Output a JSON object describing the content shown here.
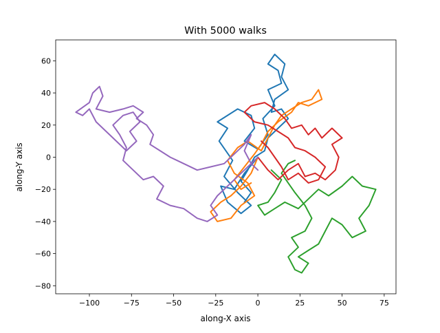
{
  "chart_data": {
    "type": "line",
    "title": "With 5000 walks",
    "xlabel": "along-X axis",
    "ylabel": "along-Y axis",
    "xlim": [
      -120,
      82
    ],
    "ylim": [
      -85,
      73
    ],
    "xticks": [
      -100,
      -75,
      -50,
      -25,
      0,
      25,
      50,
      75
    ],
    "xtick_labels": [
      "−100",
      "−75",
      "−50",
      "−25",
      "0",
      "25",
      "50",
      "75"
    ],
    "yticks": [
      -80,
      -60,
      -40,
      -20,
      0,
      20,
      40,
      60
    ],
    "ytick_labels": [
      "−80",
      "−60",
      "−40",
      "−20",
      "0",
      "20",
      "40",
      "60"
    ],
    "grid": false,
    "legend": "none",
    "series": [
      {
        "color": "#1f77b4",
        "values": [
          [
            0,
            0
          ],
          [
            -8,
            -10
          ],
          [
            -14,
            -20
          ],
          [
            -22,
            -18
          ],
          [
            -18,
            -28
          ],
          [
            -10,
            -35
          ],
          [
            -4,
            -30
          ],
          [
            -12,
            -22
          ],
          [
            -20,
            -12
          ],
          [
            -15,
            -2
          ],
          [
            -23,
            10
          ],
          [
            -18,
            18
          ],
          [
            -24,
            22
          ],
          [
            -12,
            30
          ],
          [
            -4,
            26
          ],
          [
            -2,
            18
          ],
          [
            -8,
            10
          ],
          [
            0,
            5
          ],
          [
            6,
            14
          ],
          [
            3,
            24
          ],
          [
            10,
            32
          ],
          [
            6,
            42
          ],
          [
            14,
            46
          ],
          [
            12,
            54
          ],
          [
            6,
            58
          ],
          [
            10,
            64
          ],
          [
            16,
            58
          ],
          [
            14,
            50
          ],
          [
            18,
            42
          ],
          [
            10,
            36
          ],
          [
            8,
            28
          ],
          [
            14,
            30
          ],
          [
            18,
            24
          ],
          [
            12,
            18
          ],
          [
            6,
            12
          ],
          [
            4,
            4
          ],
          [
            -2,
            0
          ],
          [
            -6,
            -8
          ],
          [
            -10,
            -15
          ],
          [
            -4,
            -22
          ],
          [
            -8,
            -28
          ]
        ]
      },
      {
        "color": "#ff7f0e",
        "values": [
          [
            0,
            0
          ],
          [
            -4,
            -10
          ],
          [
            -10,
            -18
          ],
          [
            -16,
            -24
          ],
          [
            -22,
            -28
          ],
          [
            -28,
            -34
          ],
          [
            -24,
            -40
          ],
          [
            -16,
            -38
          ],
          [
            -10,
            -30
          ],
          [
            -2,
            -24
          ],
          [
            -6,
            -16
          ],
          [
            -14,
            -10
          ],
          [
            -18,
            -2
          ],
          [
            -12,
            6
          ],
          [
            -6,
            10
          ],
          [
            2,
            4
          ],
          [
            6,
            12
          ],
          [
            10,
            20
          ],
          [
            14,
            26
          ],
          [
            20,
            30
          ],
          [
            26,
            34
          ],
          [
            32,
            36
          ],
          [
            36,
            42
          ],
          [
            38,
            36
          ],
          [
            30,
            32
          ],
          [
            24,
            34
          ],
          [
            20,
            28
          ],
          [
            12,
            22
          ],
          [
            6,
            16
          ],
          [
            2,
            8
          ],
          [
            -2,
            2
          ],
          [
            -8,
            -6
          ],
          [
            -14,
            -14
          ],
          [
            -10,
            -20
          ],
          [
            -4,
            -16
          ]
        ]
      },
      {
        "color": "#2ca02c",
        "values": [
          [
            8,
            -8
          ],
          [
            14,
            -14
          ],
          [
            10,
            -22
          ],
          [
            6,
            -28
          ],
          [
            0,
            -30
          ],
          [
            4,
            -36
          ],
          [
            10,
            -32
          ],
          [
            16,
            -28
          ],
          [
            24,
            -32
          ],
          [
            30,
            -26
          ],
          [
            36,
            -20
          ],
          [
            42,
            -24
          ],
          [
            50,
            -18
          ],
          [
            56,
            -12
          ],
          [
            62,
            -18
          ],
          [
            70,
            -20
          ],
          [
            66,
            -30
          ],
          [
            60,
            -38
          ],
          [
            64,
            -46
          ],
          [
            56,
            -50
          ],
          [
            50,
            -42
          ],
          [
            44,
            -38
          ],
          [
            40,
            -46
          ],
          [
            36,
            -54
          ],
          [
            30,
            -58
          ],
          [
            24,
            -62
          ],
          [
            30,
            -66
          ],
          [
            26,
            -72
          ],
          [
            22,
            -70
          ],
          [
            18,
            -62
          ],
          [
            24,
            -56
          ],
          [
            20,
            -50
          ],
          [
            28,
            -46
          ],
          [
            32,
            -38
          ],
          [
            28,
            -30
          ],
          [
            22,
            -22
          ],
          [
            18,
            -16
          ],
          [
            14,
            -10
          ],
          [
            18,
            -4
          ],
          [
            22,
            -2
          ]
        ]
      },
      {
        "color": "#d62728",
        "values": [
          [
            0,
            0
          ],
          [
            6,
            -8
          ],
          [
            12,
            -14
          ],
          [
            18,
            -8
          ],
          [
            24,
            -4
          ],
          [
            28,
            -12
          ],
          [
            34,
            -10
          ],
          [
            40,
            -14
          ],
          [
            46,
            -8
          ],
          [
            48,
            0
          ],
          [
            44,
            8
          ],
          [
            50,
            12
          ],
          [
            44,
            18
          ],
          [
            38,
            12
          ],
          [
            34,
            18
          ],
          [
            30,
            14
          ],
          [
            26,
            20
          ],
          [
            20,
            18
          ],
          [
            16,
            24
          ],
          [
            10,
            30
          ],
          [
            4,
            34
          ],
          [
            -4,
            32
          ],
          [
            -8,
            28
          ],
          [
            -2,
            22
          ],
          [
            6,
            20
          ],
          [
            12,
            16
          ],
          [
            18,
            12
          ],
          [
            22,
            6
          ],
          [
            28,
            4
          ],
          [
            34,
            0
          ],
          [
            40,
            -6
          ],
          [
            36,
            -14
          ],
          [
            30,
            -16
          ],
          [
            24,
            -10
          ],
          [
            18,
            -14
          ],
          [
            14,
            -6
          ],
          [
            10,
            0
          ],
          [
            6,
            6
          ],
          [
            2,
            10
          ]
        ]
      },
      {
        "color": "#9467bd",
        "values": [
          [
            0,
            0
          ],
          [
            -6,
            -6
          ],
          [
            -12,
            -12
          ],
          [
            -18,
            -18
          ],
          [
            -24,
            -24
          ],
          [
            -28,
            -30
          ],
          [
            -24,
            -36
          ],
          [
            -30,
            -40
          ],
          [
            -36,
            -38
          ],
          [
            -44,
            -32
          ],
          [
            -52,
            -30
          ],
          [
            -60,
            -26
          ],
          [
            -56,
            -18
          ],
          [
            -62,
            -12
          ],
          [
            -68,
            -14
          ],
          [
            -74,
            -8
          ],
          [
            -80,
            -2
          ],
          [
            -78,
            6
          ],
          [
            -82,
            14
          ],
          [
            -86,
            20
          ],
          [
            -80,
            26
          ],
          [
            -74,
            28
          ],
          [
            -70,
            22
          ],
          [
            -76,
            16
          ],
          [
            -72,
            10
          ],
          [
            -78,
            4
          ],
          [
            -84,
            10
          ],
          [
            -90,
            16
          ],
          [
            -96,
            22
          ],
          [
            -100,
            30
          ],
          [
            -104,
            26
          ],
          [
            -108,
            28
          ],
          [
            -100,
            34
          ],
          [
            -98,
            40
          ],
          [
            -94,
            44
          ],
          [
            -92,
            38
          ],
          [
            -96,
            30
          ],
          [
            -88,
            28
          ],
          [
            -80,
            30
          ],
          [
            -74,
            32
          ],
          [
            -68,
            28
          ],
          [
            -72,
            24
          ],
          [
            -66,
            20
          ],
          [
            -62,
            14
          ],
          [
            -64,
            8
          ],
          [
            -58,
            4
          ],
          [
            -52,
            0
          ],
          [
            -44,
            -4
          ],
          [
            -36,
            -8
          ],
          [
            -28,
            -6
          ],
          [
            -20,
            -4
          ],
          [
            -14,
            2
          ],
          [
            -8,
            8
          ],
          [
            -4,
            14
          ],
          [
            -8,
            4
          ],
          [
            -4,
            -4
          ],
          [
            0,
            -8
          ]
        ]
      }
    ]
  }
}
